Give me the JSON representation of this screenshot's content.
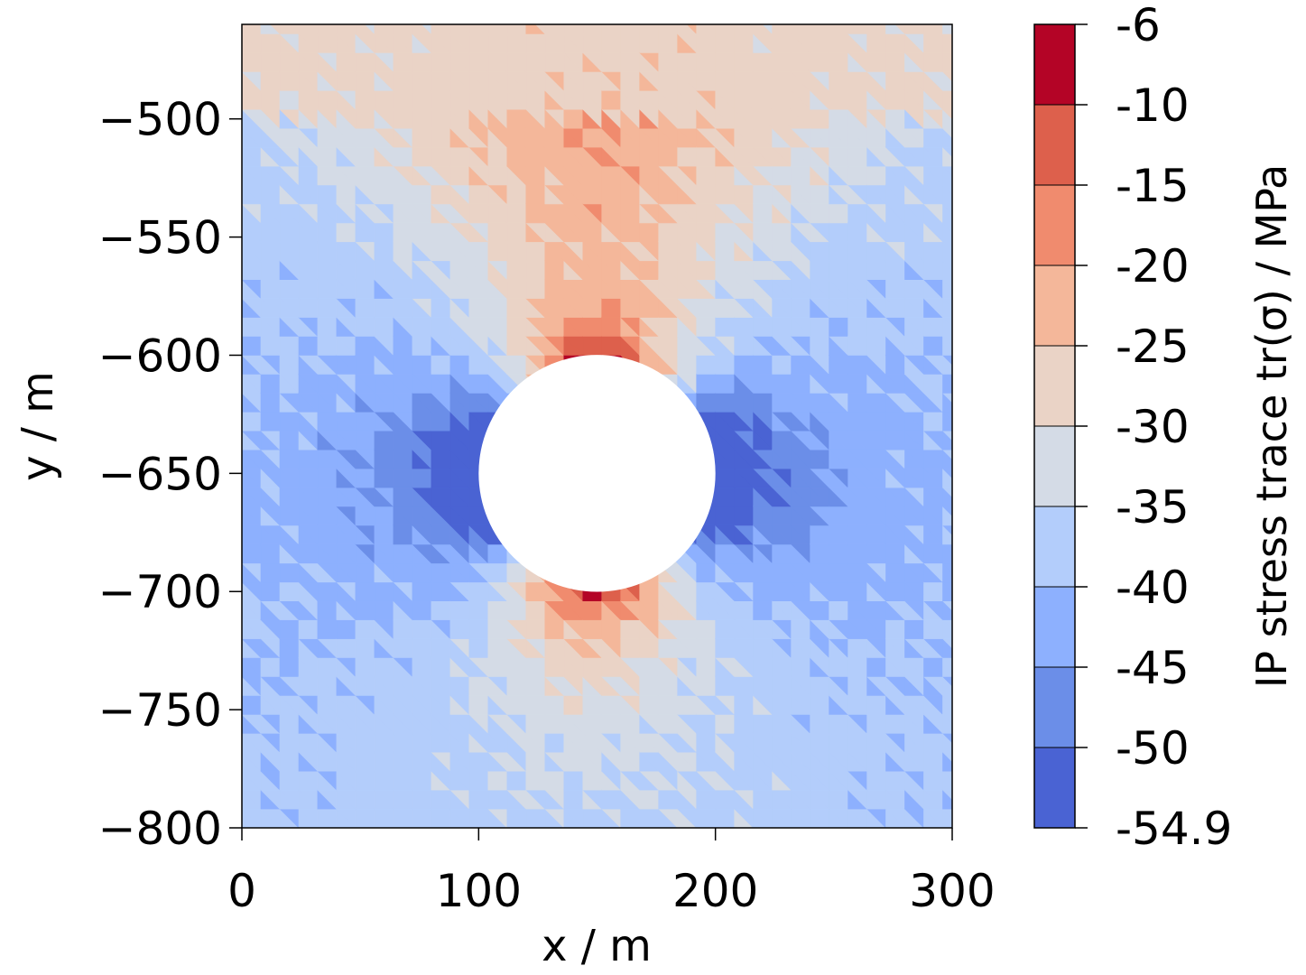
{
  "chart_data": {
    "type": "heatmap",
    "title": "",
    "xlabel": "x / m",
    "ylabel": "y / m",
    "xlim": [
      0,
      300
    ],
    "ylim": [
      -800,
      -460
    ],
    "xticks": [
      {
        "value": 0,
        "label": "0"
      },
      {
        "value": 100,
        "label": "100"
      },
      {
        "value": 200,
        "label": "200"
      },
      {
        "value": 300,
        "label": "300"
      }
    ],
    "yticks": [
      {
        "value": -500,
        "label": "−500"
      },
      {
        "value": -550,
        "label": "−550"
      },
      {
        "value": -600,
        "label": "−600"
      },
      {
        "value": -650,
        "label": "−650"
      },
      {
        "value": -700,
        "label": "−700"
      },
      {
        "value": -750,
        "label": "−750"
      },
      {
        "value": -800,
        "label": "−800"
      }
    ],
    "cavity": {
      "center": [
        150,
        -650
      ],
      "radius": 50
    },
    "colorbar": {
      "label": "IP stress trace tr(σ) / MPa",
      "ticks": [
        "-6",
        "-10",
        "-15",
        "-20",
        "-25",
        "-30",
        "-35",
        "-40",
        "-45",
        "-50",
        "-54.9"
      ],
      "bounds": [
        -6,
        -10,
        -15,
        -20,
        -25,
        -30,
        -35,
        -40,
        -45,
        -50,
        -54.9
      ],
      "colors": [
        "#b40426",
        "#dd604c",
        "#f08b6e",
        "#f4b79a",
        "#ead3c6",
        "#d4dbe6",
        "#b3cdfb",
        "#8db0fe",
        "#6b8ee8",
        "#4a63d3"
      ]
    }
  }
}
